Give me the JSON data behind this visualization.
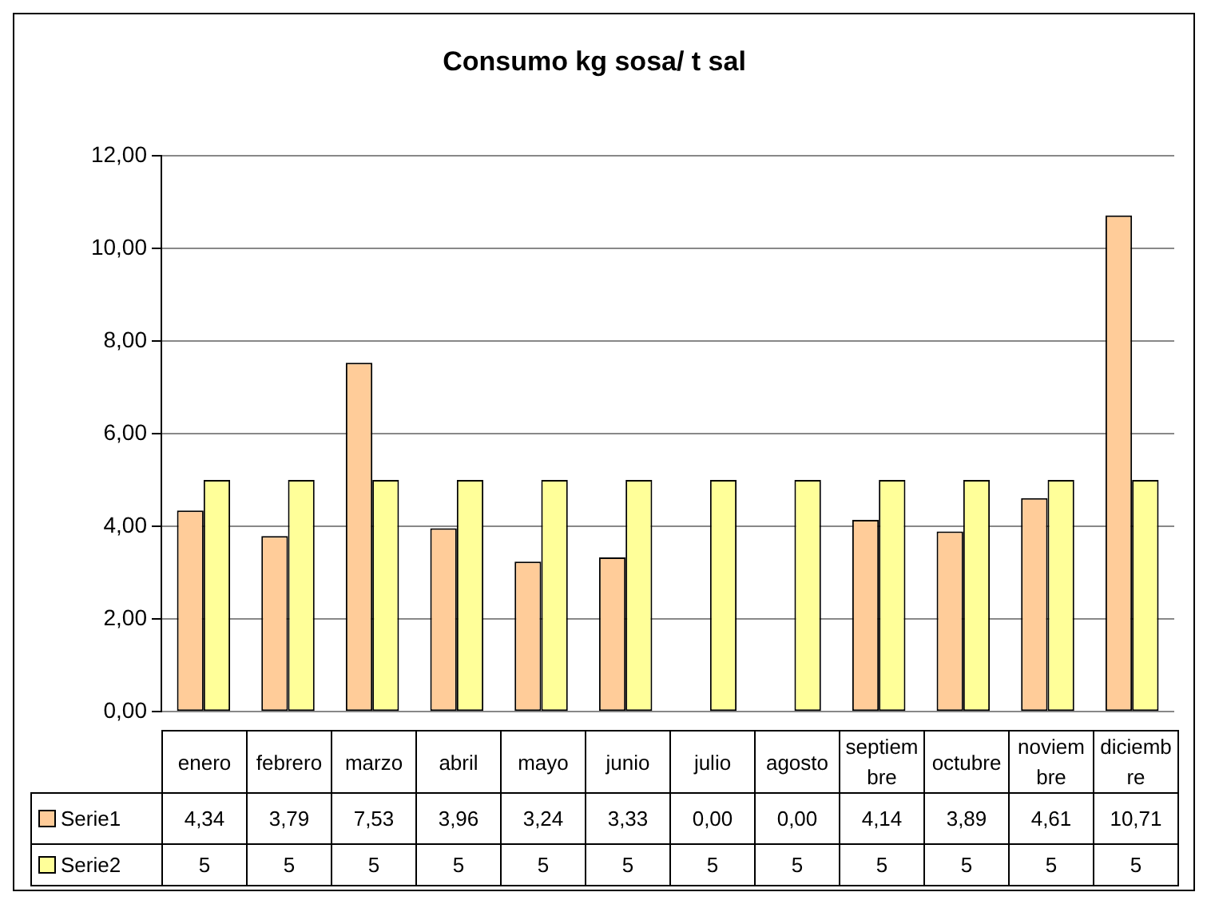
{
  "chart_data": {
    "type": "bar",
    "title": "Consumo kg sosa/ t sal",
    "categories": [
      "enero",
      "febrero",
      "marzo",
      "abril",
      "mayo",
      "junio",
      "julio",
      "agosto",
      "septiembre",
      "octubre",
      "noviembre",
      "diciembre"
    ],
    "series": [
      {
        "name": "Serie1",
        "color": "#ffcc99",
        "values": [
          4.34,
          3.79,
          7.53,
          3.96,
          3.24,
          3.33,
          0,
          0,
          4.14,
          3.89,
          4.61,
          10.71
        ],
        "value_labels": [
          "4,34",
          "3,79",
          "7,53",
          "3,96",
          "3,24",
          "3,33",
          "0,00",
          "0,00",
          "4,14",
          "3,89",
          "4,61",
          "10,71"
        ]
      },
      {
        "name": "Serie2",
        "color": "#ffff99",
        "values": [
          5,
          5,
          5,
          5,
          5,
          5,
          5,
          5,
          5,
          5,
          5,
          5
        ],
        "value_labels": [
          "5",
          "5",
          "5",
          "5",
          "5",
          "5",
          "5",
          "5",
          "5",
          "5",
          "5",
          "5"
        ]
      }
    ],
    "ylim": [
      0,
      12
    ],
    "yticks": [
      {
        "value": 0,
        "label": "0,00"
      },
      {
        "value": 2,
        "label": "2,00"
      },
      {
        "value": 4,
        "label": "4,00"
      },
      {
        "value": 6,
        "label": "6,00"
      },
      {
        "value": 8,
        "label": "8,00"
      },
      {
        "value": 10,
        "label": "10,00"
      },
      {
        "value": 12,
        "label": "12,00"
      }
    ],
    "grid": "y",
    "legend": "bottom"
  }
}
